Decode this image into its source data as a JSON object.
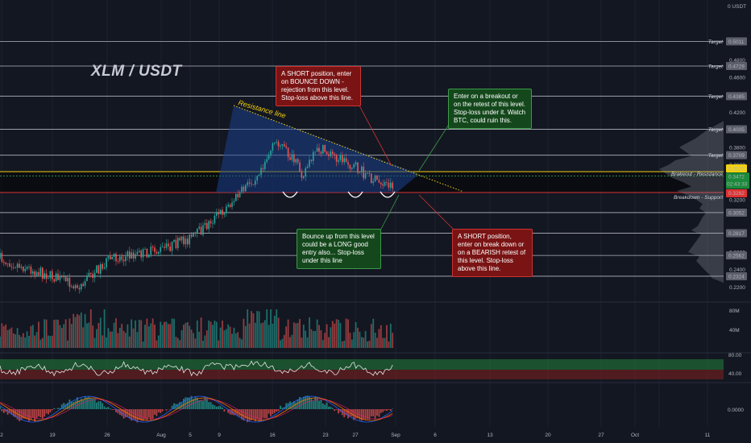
{
  "watermark": "XLM / USDT",
  "price_axis": {
    "currency": "USDT",
    "unit_label": "0 USDT",
    "ticks": [
      "0.4800",
      "0.4600",
      "0.4200",
      "0.3800",
      "0.3600",
      "0.3200",
      "0.2600",
      "0.2400",
      "0.2200"
    ],
    "targets": [
      {
        "label": "Target",
        "value": "0.5011"
      },
      {
        "label": "Target",
        "value": "0.4729"
      },
      {
        "label": "Target",
        "value": "0.4385"
      },
      {
        "label": "Target",
        "value": "0.4005"
      },
      {
        "label": "Target",
        "value": "0.3709"
      }
    ],
    "levels": [
      "0.3052",
      "0.2817",
      "0.2562",
      "0.2324"
    ],
    "resistance_price": "0.3520",
    "current_price": "0.3472",
    "countdown": "02:43:33",
    "support_price": "0.3282",
    "breakout_label": "Brakeout - Resistance",
    "breakdown_label": "Breakdown - Support"
  },
  "volume_axis": {
    "ticks": [
      "80M",
      "40M"
    ]
  },
  "rsi_axis": {
    "ticks": [
      "80.00",
      "40.00"
    ]
  },
  "macd_axis": {
    "ticks": [
      "0.0000"
    ]
  },
  "time_axis": {
    "ticks": [
      "2",
      "19",
      "26",
      "Aug",
      "5",
      "9",
      "16",
      "23",
      "27",
      "Sep",
      "6",
      "13",
      "20",
      "27",
      "Oct",
      "11"
    ]
  },
  "drawing": {
    "resistance_line_label": "Resistance line"
  },
  "notes": {
    "short_bounce": "A SHORT position, enter on BOUNCE DOWN - rejection from this level. Stop-loss above this line.",
    "breakout_long": "Enter on a breakout or on the retest of this level. Stop-loss under it. Watch BTC, could ruin this.",
    "bounce_long": "Bounce up from this level could be a LONG good entry also... Stop-loss under this line",
    "short_breakdown": "A SHORT position, enter on break down or on a BEARISH retest of this level. Stop-loss above this line."
  },
  "colors": {
    "background": "#131722",
    "bull": "#26a69a",
    "bear": "#ef5350",
    "resistance": "#f5d20b",
    "support": "#e03131",
    "current": "#1b8a3a",
    "triangle": "#1c3f8a",
    "target_line": "#b2b5be"
  },
  "chart_data": {
    "type": "candlestick",
    "title": "XLM / USDT",
    "ylim": [
      0.22,
      0.52
    ],
    "target_levels": [
      0.5011,
      0.4729,
      0.4385,
      0.4005,
      0.3709
    ],
    "resistance_level": 0.352,
    "current_price": 0.3472,
    "support_level": 0.3282,
    "lower_levels": [
      0.3052,
      0.2817,
      0.2562,
      0.2324
    ],
    "price_path": [
      {
        "date": "Jul 12",
        "price": 0.255
      },
      {
        "date": "Jul 19",
        "price": 0.232
      },
      {
        "date": "Jul 22",
        "price": 0.222
      },
      {
        "date": "Jul 26",
        "price": 0.252
      },
      {
        "date": "Aug 1",
        "price": 0.262
      },
      {
        "date": "Aug 5",
        "price": 0.278
      },
      {
        "date": "Aug 9",
        "price": 0.312
      },
      {
        "date": "Aug 12",
        "price": 0.342
      },
      {
        "date": "Aug 15",
        "price": 0.388
      },
      {
        "date": "Aug 18",
        "price": 0.35
      },
      {
        "date": "Aug 20",
        "price": 0.378
      },
      {
        "date": "Aug 23",
        "price": 0.365
      },
      {
        "date": "Aug 27",
        "price": 0.34
      },
      {
        "date": "Aug 30",
        "price": 0.335
      },
      {
        "date": "Sep 1",
        "price": 0.347
      }
    ],
    "volume_axis_ticks": [
      "80M",
      "40M"
    ],
    "rsi_band": [
      40,
      80
    ]
  }
}
